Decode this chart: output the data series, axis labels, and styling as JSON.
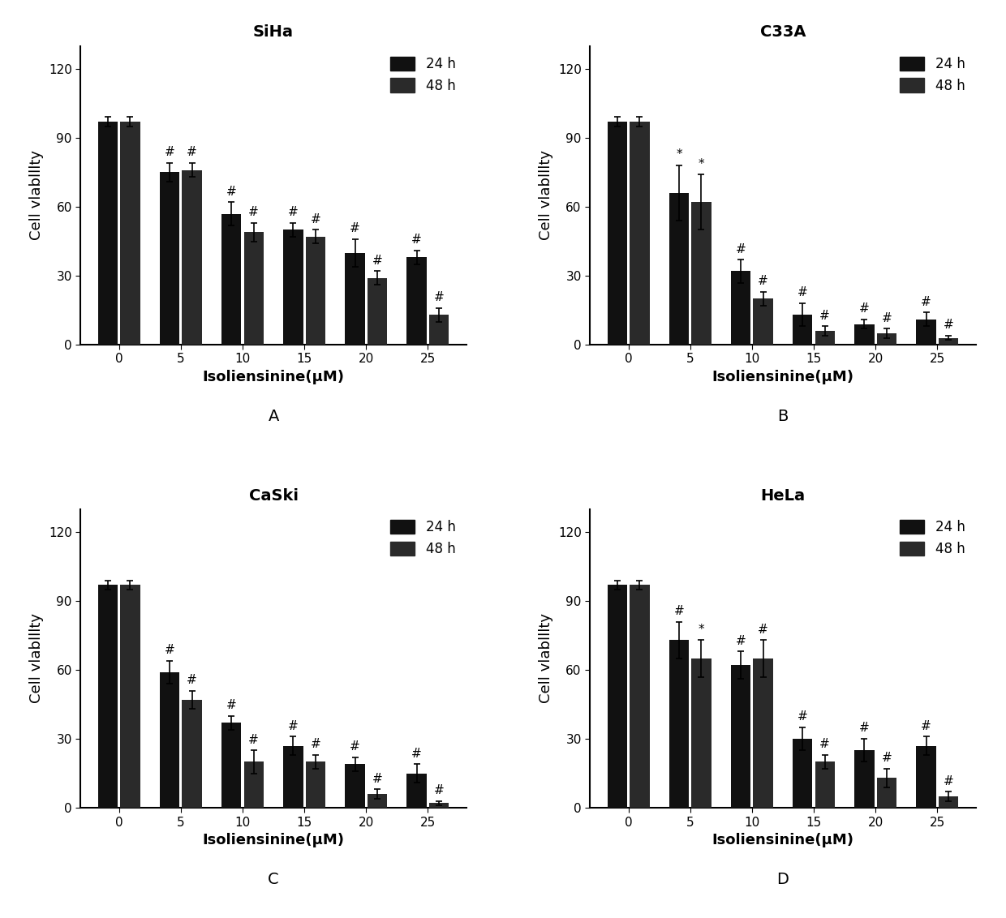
{
  "panels": [
    {
      "title": "SiHa",
      "label": "A",
      "x_values": [
        0,
        5,
        10,
        15,
        20,
        25
      ],
      "h24": [
        97,
        75,
        57,
        50,
        40,
        38
      ],
      "h48": [
        97,
        76,
        49,
        47,
        29,
        13
      ],
      "err24": [
        2,
        4,
        5,
        3,
        6,
        3
      ],
      "err48": [
        2,
        3,
        4,
        3,
        3,
        3
      ],
      "sig24": [
        "",
        "#",
        "#",
        "#",
        "#",
        "#"
      ],
      "sig48": [
        "",
        "#",
        "#",
        "#",
        "#",
        "#"
      ]
    },
    {
      "title": "C33A",
      "label": "B",
      "x_values": [
        0,
        5,
        10,
        15,
        20,
        25
      ],
      "h24": [
        97,
        66,
        32,
        13,
        9,
        11
      ],
      "h48": [
        97,
        62,
        20,
        6,
        5,
        3
      ],
      "err24": [
        2,
        12,
        5,
        5,
        2,
        3
      ],
      "err48": [
        2,
        12,
        3,
        2,
        2,
        1
      ],
      "sig24": [
        "",
        "*",
        "#",
        "#",
        "#",
        "#"
      ],
      "sig48": [
        "",
        "*",
        "#",
        "#",
        "#",
        "#"
      ]
    },
    {
      "title": "CaSki",
      "label": "C",
      "x_values": [
        0,
        5,
        10,
        15,
        20,
        25
      ],
      "h24": [
        97,
        59,
        37,
        27,
        19,
        15
      ],
      "h48": [
        97,
        47,
        20,
        20,
        6,
        2
      ],
      "err24": [
        2,
        5,
        3,
        4,
        3,
        4
      ],
      "err48": [
        2,
        4,
        5,
        3,
        2,
        1
      ],
      "sig24": [
        "",
        "#",
        "#",
        "#",
        "#",
        "#"
      ],
      "sig48": [
        "",
        "#",
        "#",
        "#",
        "#",
        "#"
      ]
    },
    {
      "title": "HeLa",
      "label": "D",
      "x_values": [
        0,
        5,
        10,
        15,
        20,
        25
      ],
      "h24": [
        97,
        73,
        62,
        30,
        25,
        27
      ],
      "h48": [
        97,
        65,
        65,
        20,
        13,
        5
      ],
      "err24": [
        2,
        8,
        6,
        5,
        5,
        4
      ],
      "err48": [
        2,
        8,
        8,
        3,
        4,
        2
      ],
      "sig24": [
        "",
        "#",
        "#",
        "#",
        "#",
        "#"
      ],
      "sig48": [
        "",
        "*",
        "#",
        "#",
        "#",
        "#"
      ]
    }
  ],
  "bar_color_24": "#111111",
  "bar_color_48": "#2a2a2a",
  "bar_width": 0.32,
  "bar_gap": 0.04,
  "ylim": [
    0,
    130
  ],
  "yticks": [
    0,
    30,
    60,
    90,
    120
  ],
  "xlabel": "Isoliensinine(μM)",
  "ylabel": "Cell vlablllty",
  "legend_labels": [
    "24 h",
    "48 h"
  ],
  "sig_fontsize": 11,
  "title_fontsize": 14,
  "label_fontsize": 13,
  "tick_fontsize": 11,
  "legend_fontsize": 12
}
